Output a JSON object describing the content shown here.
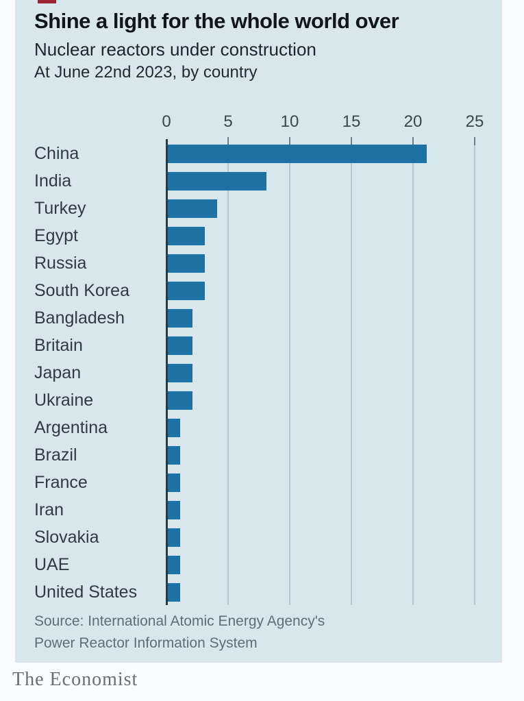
{
  "brand": {
    "tab_color": "#9b2430",
    "wordmark": "The Economist"
  },
  "header": {
    "title": "Shine a light for the whole world over",
    "subtitle": "Nuclear reactors under construction",
    "date_note": "At June 22nd 2023, by country"
  },
  "chart_data": {
    "type": "bar",
    "orientation": "horizontal",
    "title": "Nuclear reactors under construction",
    "subtitle": "At June 22nd 2023, by country",
    "categories": [
      "China",
      "India",
      "Turkey",
      "Egypt",
      "Russia",
      "South Korea",
      "Bangladesh",
      "Britain",
      "Japan",
      "Ukraine",
      "Argentina",
      "Brazil",
      "France",
      "Iran",
      "Slovakia",
      "UAE",
      "United States"
    ],
    "values": [
      21,
      8,
      4,
      3,
      3,
      3,
      2,
      2,
      2,
      2,
      1,
      1,
      1,
      1,
      1,
      1,
      1
    ],
    "x_ticks": [
      0,
      5,
      10,
      15,
      20,
      25
    ],
    "xlim": [
      0,
      25
    ],
    "xlabel": "",
    "ylabel": "",
    "axis_position": "top",
    "grid": true,
    "legend": false,
    "bar_color": "#1e72a3",
    "background_color": "#d8e6ee",
    "gridline_color": "#b7c9d3"
  },
  "source": {
    "line1": "Source: International Atomic Energy Agency's",
    "line2": "Power Reactor Information System"
  }
}
